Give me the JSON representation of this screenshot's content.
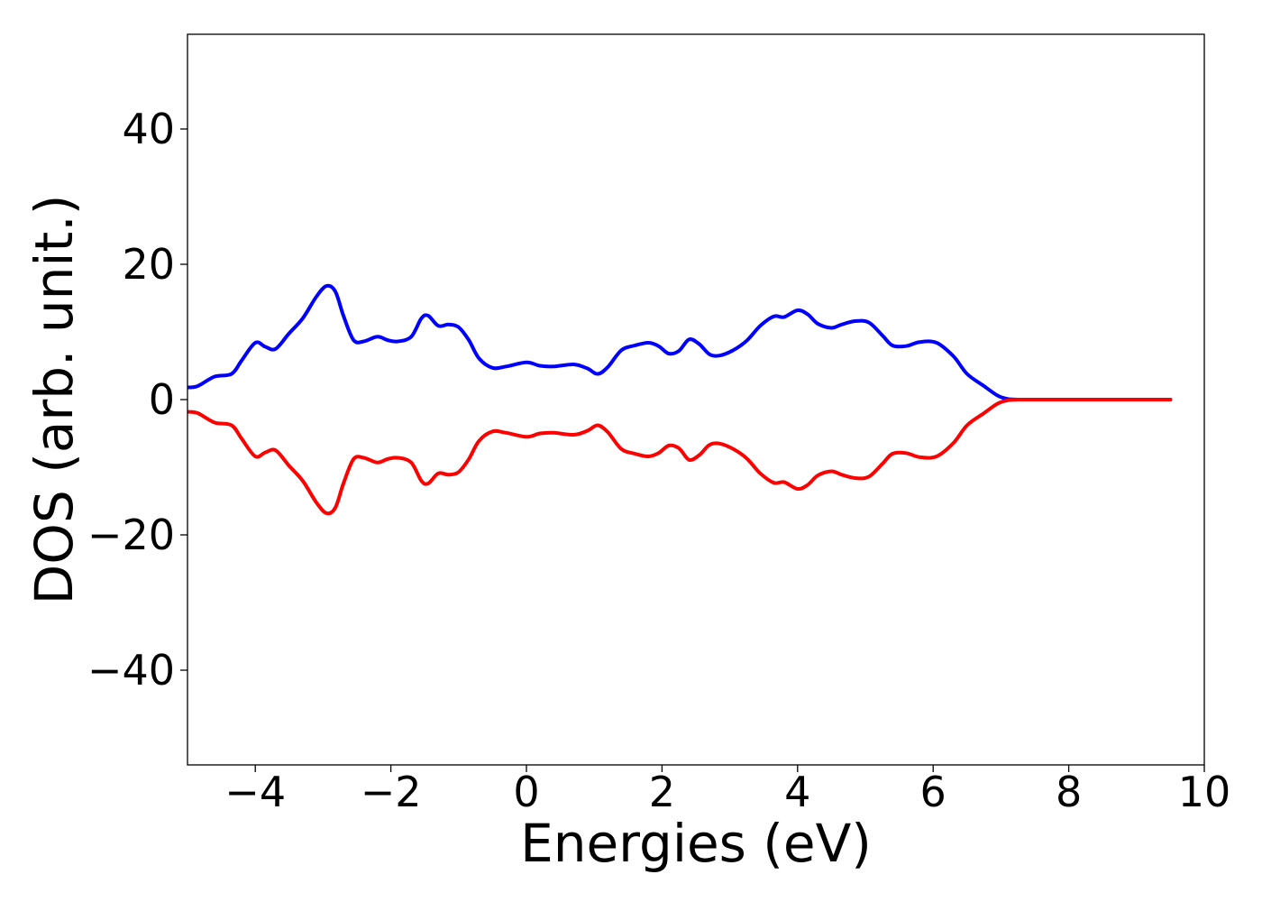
{
  "chart_data": {
    "type": "line",
    "title": "",
    "xlabel": "Energies (eV)",
    "ylabel": "DOS (arb. unit.)",
    "xlim": [
      -5,
      10
    ],
    "ylim": [
      -54,
      54
    ],
    "xticks": [
      -4,
      -2,
      0,
      2,
      4,
      6,
      8,
      10
    ],
    "xtick_labels": [
      "−4",
      "−2",
      "0",
      "2",
      "4",
      "6",
      "8",
      "10"
    ],
    "yticks": [
      -40,
      -20,
      0,
      20,
      40
    ],
    "ytick_labels": [
      "−40",
      "−20",
      "0",
      "20",
      "40"
    ],
    "grid": false,
    "legend": "none",
    "series": [
      {
        "color": "#0000ff",
        "x": [
          -5.0,
          -4.85,
          -4.6,
          -4.35,
          -4.2,
          -4.0,
          -3.85,
          -3.7,
          -3.5,
          -3.3,
          -3.1,
          -2.95,
          -2.82,
          -2.7,
          -2.55,
          -2.4,
          -2.2,
          -2.05,
          -1.9,
          -1.7,
          -1.55,
          -1.45,
          -1.3,
          -1.15,
          -1.0,
          -0.85,
          -0.7,
          -0.5,
          -0.3,
          0.0,
          0.2,
          0.4,
          0.7,
          0.9,
          1.05,
          1.2,
          1.4,
          1.6,
          1.8,
          1.95,
          2.1,
          2.25,
          2.4,
          2.55,
          2.7,
          2.85,
          3.05,
          3.25,
          3.45,
          3.65,
          3.8,
          4.0,
          4.15,
          4.3,
          4.5,
          4.65,
          4.85,
          5.05,
          5.25,
          5.4,
          5.6,
          5.8,
          6.05,
          6.3,
          6.5,
          6.75,
          6.95,
          7.1,
          7.3,
          7.6,
          8.0,
          8.5,
          9.0,
          9.5
        ],
        "values": [
          1.8,
          2.0,
          3.4,
          3.8,
          5.8,
          8.4,
          7.8,
          7.5,
          9.8,
          12.0,
          15.2,
          16.8,
          16.0,
          12.4,
          8.8,
          8.6,
          9.3,
          8.8,
          8.6,
          9.3,
          12.0,
          12.4,
          10.9,
          11.1,
          10.7,
          8.8,
          6.1,
          4.7,
          4.9,
          5.5,
          5.0,
          4.9,
          5.2,
          4.6,
          3.8,
          4.8,
          7.3,
          8.0,
          8.4,
          7.9,
          6.8,
          7.2,
          8.9,
          8.2,
          6.7,
          6.5,
          7.3,
          8.7,
          10.9,
          12.3,
          12.2,
          13.2,
          12.6,
          11.2,
          10.6,
          11.1,
          11.6,
          11.4,
          9.5,
          8.0,
          7.9,
          8.5,
          8.4,
          6.4,
          3.8,
          2.0,
          0.6,
          0.1,
          0.0,
          0.0,
          0.0,
          0.0,
          0.0,
          0.0
        ]
      },
      {
        "color": "#ff0000",
        "x": [
          -5.0,
          -4.85,
          -4.6,
          -4.35,
          -4.2,
          -4.0,
          -3.85,
          -3.7,
          -3.5,
          -3.3,
          -3.1,
          -2.95,
          -2.82,
          -2.7,
          -2.55,
          -2.4,
          -2.2,
          -2.05,
          -1.9,
          -1.7,
          -1.55,
          -1.45,
          -1.3,
          -1.15,
          -1.0,
          -0.85,
          -0.7,
          -0.5,
          -0.3,
          0.0,
          0.2,
          0.4,
          0.7,
          0.9,
          1.05,
          1.2,
          1.4,
          1.6,
          1.8,
          1.95,
          2.1,
          2.25,
          2.4,
          2.55,
          2.7,
          2.85,
          3.05,
          3.25,
          3.45,
          3.65,
          3.8,
          4.0,
          4.15,
          4.3,
          4.5,
          4.65,
          4.85,
          5.05,
          5.25,
          5.4,
          5.6,
          5.8,
          6.05,
          6.3,
          6.5,
          6.75,
          6.95,
          7.1,
          7.3,
          7.6,
          8.0,
          8.5,
          9.0,
          9.5
        ],
        "values": [
          -1.8,
          -2.0,
          -3.4,
          -3.8,
          -5.8,
          -8.4,
          -7.8,
          -7.5,
          -9.8,
          -12.0,
          -15.2,
          -16.8,
          -16.0,
          -12.4,
          -8.8,
          -8.6,
          -9.3,
          -8.8,
          -8.6,
          -9.3,
          -12.0,
          -12.4,
          -10.9,
          -11.1,
          -10.7,
          -8.8,
          -6.1,
          -4.7,
          -4.9,
          -5.5,
          -5.0,
          -4.9,
          -5.2,
          -4.6,
          -3.8,
          -4.8,
          -7.3,
          -8.0,
          -8.4,
          -7.9,
          -6.8,
          -7.2,
          -8.9,
          -8.2,
          -6.7,
          -6.5,
          -7.3,
          -8.7,
          -10.9,
          -12.3,
          -12.2,
          -13.2,
          -12.6,
          -11.2,
          -10.6,
          -11.1,
          -11.6,
          -11.4,
          -9.5,
          -8.0,
          -7.9,
          -8.5,
          -8.4,
          -6.4,
          -3.8,
          -2.0,
          -0.6,
          -0.1,
          0.0,
          0.0,
          0.0,
          0.0,
          0.0,
          0.0
        ]
      }
    ]
  }
}
